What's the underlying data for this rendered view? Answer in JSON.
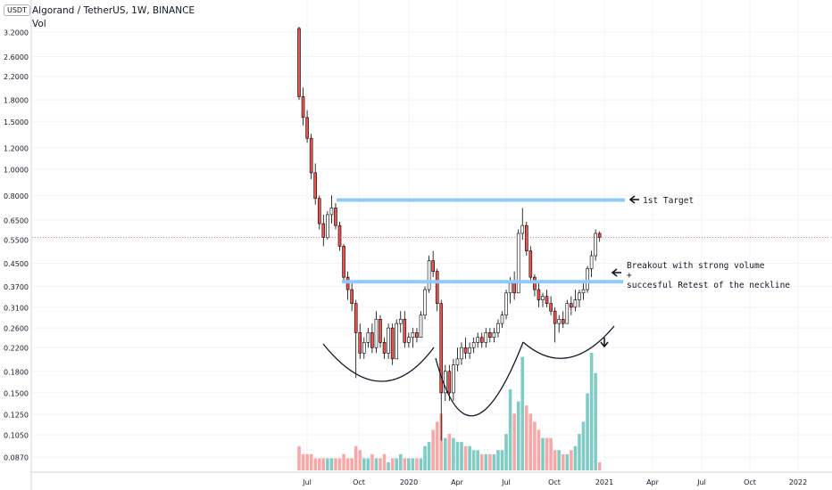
{
  "header": {
    "title": "Algorand / TetherUS, 1W, BINANCE",
    "volume_label": "Vol",
    "currency_badge": "USDT"
  },
  "colors": {
    "up": "#26a69a",
    "down": "#ef5350",
    "up_vol": "#80cbc4",
    "down_vol": "#f7a9a7",
    "level_line": "#90caf9",
    "grid": "#f0f3fa",
    "text": "#131722"
  },
  "chart_data": {
    "type": "candlestick",
    "title": "Algorand / TetherUS, 1W, BINANCE",
    "y_scale": "log",
    "ylim": [
      0.08,
      3.6
    ],
    "y_ticks": [
      "3.2000",
      "2.6000",
      "2.2000",
      "1.8000",
      "1.5000",
      "1.2000",
      "1.0000",
      "0.8000",
      "0.6500",
      "0.5500",
      "0.4500",
      "0.3700",
      "0.3100",
      "0.2600",
      "0.2200",
      "0.1800",
      "0.1500",
      "0.1250",
      "0.1050",
      "0.0870"
    ],
    "x_ticks": [
      "Jul",
      "Oct",
      "2020",
      "Apr",
      "Jul",
      "Oct",
      "2021",
      "Apr",
      "Jul",
      "Oct",
      "2022"
    ],
    "last_price": 0.56,
    "levels": [
      {
        "name": "1st Target",
        "price": 0.77
      },
      {
        "name": "neckline",
        "price": 0.385
      }
    ],
    "annotations": [
      "1st Target",
      "Breakout with strong volume",
      "+",
      "succesful Retest of the neckline"
    ],
    "candles_ohlc": [
      [
        3.3,
        3.35,
        1.8,
        1.85
      ],
      [
        1.85,
        2.0,
        1.45,
        1.55
      ],
      [
        1.55,
        1.65,
        1.25,
        1.3
      ],
      [
        1.3,
        1.35,
        0.92,
        0.97
      ],
      [
        0.97,
        1.05,
        0.74,
        0.78
      ],
      [
        0.78,
        0.8,
        0.6,
        0.63
      ],
      [
        0.63,
        0.68,
        0.52,
        0.56
      ],
      [
        0.56,
        0.7,
        0.55,
        0.68
      ],
      [
        0.68,
        0.8,
        0.63,
        0.72
      ],
      [
        0.72,
        0.75,
        0.6,
        0.62
      ],
      [
        0.62,
        0.64,
        0.5,
        0.52
      ],
      [
        0.52,
        0.53,
        0.38,
        0.4
      ],
      [
        0.4,
        0.42,
        0.33,
        0.36
      ],
      [
        0.36,
        0.38,
        0.3,
        0.32
      ],
      [
        0.32,
        0.33,
        0.17,
        0.25
      ],
      [
        0.25,
        0.27,
        0.2,
        0.21
      ],
      [
        0.21,
        0.24,
        0.2,
        0.23
      ],
      [
        0.23,
        0.26,
        0.22,
        0.25
      ],
      [
        0.25,
        0.27,
        0.21,
        0.22
      ],
      [
        0.22,
        0.3,
        0.21,
        0.28
      ],
      [
        0.28,
        0.29,
        0.22,
        0.23
      ],
      [
        0.23,
        0.24,
        0.2,
        0.21
      ],
      [
        0.21,
        0.27,
        0.2,
        0.26
      ],
      [
        0.26,
        0.27,
        0.19,
        0.2
      ],
      [
        0.2,
        0.28,
        0.2,
        0.27
      ],
      [
        0.27,
        0.3,
        0.25,
        0.28
      ],
      [
        0.28,
        0.3,
        0.22,
        0.23
      ],
      [
        0.23,
        0.25,
        0.22,
        0.24
      ],
      [
        0.24,
        0.26,
        0.22,
        0.25
      ],
      [
        0.25,
        0.26,
        0.23,
        0.24
      ],
      [
        0.24,
        0.3,
        0.24,
        0.29
      ],
      [
        0.29,
        0.37,
        0.28,
        0.36
      ],
      [
        0.36,
        0.48,
        0.35,
        0.46
      ],
      [
        0.46,
        0.5,
        0.4,
        0.42
      ],
      [
        0.42,
        0.43,
        0.3,
        0.32
      ],
      [
        0.32,
        0.33,
        0.1,
        0.15
      ],
      [
        0.15,
        0.19,
        0.14,
        0.18
      ],
      [
        0.18,
        0.19,
        0.14,
        0.15
      ],
      [
        0.15,
        0.2,
        0.14,
        0.19
      ],
      [
        0.19,
        0.22,
        0.18,
        0.2
      ],
      [
        0.2,
        0.23,
        0.19,
        0.22
      ],
      [
        0.22,
        0.24,
        0.2,
        0.21
      ],
      [
        0.21,
        0.23,
        0.2,
        0.22
      ],
      [
        0.22,
        0.24,
        0.21,
        0.23
      ],
      [
        0.23,
        0.25,
        0.22,
        0.24
      ],
      [
        0.24,
        0.25,
        0.22,
        0.23
      ],
      [
        0.23,
        0.26,
        0.22,
        0.25
      ],
      [
        0.25,
        0.26,
        0.23,
        0.24
      ],
      [
        0.24,
        0.26,
        0.23,
        0.25
      ],
      [
        0.25,
        0.28,
        0.24,
        0.27
      ],
      [
        0.27,
        0.3,
        0.26,
        0.29
      ],
      [
        0.29,
        0.36,
        0.28,
        0.35
      ],
      [
        0.35,
        0.4,
        0.32,
        0.38
      ],
      [
        0.38,
        0.42,
        0.33,
        0.35
      ],
      [
        0.35,
        0.6,
        0.35,
        0.58
      ],
      [
        0.58,
        0.72,
        0.55,
        0.62
      ],
      [
        0.62,
        0.64,
        0.48,
        0.5
      ],
      [
        0.5,
        0.52,
        0.38,
        0.4
      ],
      [
        0.4,
        0.41,
        0.34,
        0.36
      ],
      [
        0.36,
        0.38,
        0.31,
        0.33
      ],
      [
        0.33,
        0.35,
        0.31,
        0.34
      ],
      [
        0.34,
        0.36,
        0.31,
        0.32
      ],
      [
        0.32,
        0.34,
        0.29,
        0.3
      ],
      [
        0.3,
        0.31,
        0.23,
        0.27
      ],
      [
        0.27,
        0.29,
        0.25,
        0.28
      ],
      [
        0.28,
        0.3,
        0.26,
        0.27
      ],
      [
        0.27,
        0.33,
        0.27,
        0.32
      ],
      [
        0.32,
        0.34,
        0.29,
        0.31
      ],
      [
        0.31,
        0.36,
        0.3,
        0.33
      ],
      [
        0.33,
        0.36,
        0.31,
        0.35
      ],
      [
        0.35,
        0.38,
        0.33,
        0.36
      ],
      [
        0.36,
        0.44,
        0.35,
        0.43
      ],
      [
        0.43,
        0.5,
        0.4,
        0.48
      ],
      [
        0.48,
        0.6,
        0.46,
        0.58
      ],
      [
        0.58,
        0.59,
        0.54,
        0.56
      ]
    ],
    "volumes": [
      6,
      4,
      4,
      4,
      3,
      3,
      3,
      3,
      3,
      3,
      3,
      4,
      3,
      3,
      6,
      5,
      3,
      3,
      4,
      3,
      3,
      4,
      2,
      3,
      3,
      4,
      3,
      3,
      3,
      3,
      3,
      6,
      7,
      10,
      12,
      14,
      8,
      9,
      8,
      7,
      7,
      6,
      6,
      5,
      5,
      4,
      4,
      4,
      4,
      5,
      5,
      9,
      20,
      14,
      17,
      28,
      16,
      14,
      12,
      10,
      8,
      8,
      8,
      5,
      5,
      4,
      4,
      5,
      6,
      9,
      12,
      19,
      29,
      24,
      2
    ]
  }
}
